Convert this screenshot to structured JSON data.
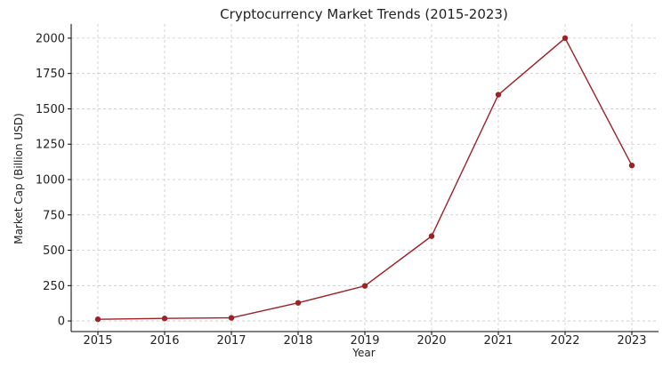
{
  "chart_data": {
    "type": "line",
    "title": "Cryptocurrency Market Trends (2015-2023)",
    "xlabel": "Year",
    "ylabel": "Market Cap (Billion USD)",
    "categories": [
      "2015",
      "2016",
      "2017",
      "2018",
      "2019",
      "2020",
      "2021",
      "2022",
      "2023"
    ],
    "series": [
      {
        "values": [
          12,
          18,
          22,
          128,
          248,
          600,
          1600,
          2000,
          1100
        ],
        "color": "#9b2226",
        "marker": "circle"
      }
    ],
    "ylim": [
      -75,
      2100
    ],
    "yticks": [
      0,
      250,
      500,
      750,
      1000,
      1250,
      1500,
      1750,
      2000
    ],
    "grid": true,
    "legend": "none"
  }
}
